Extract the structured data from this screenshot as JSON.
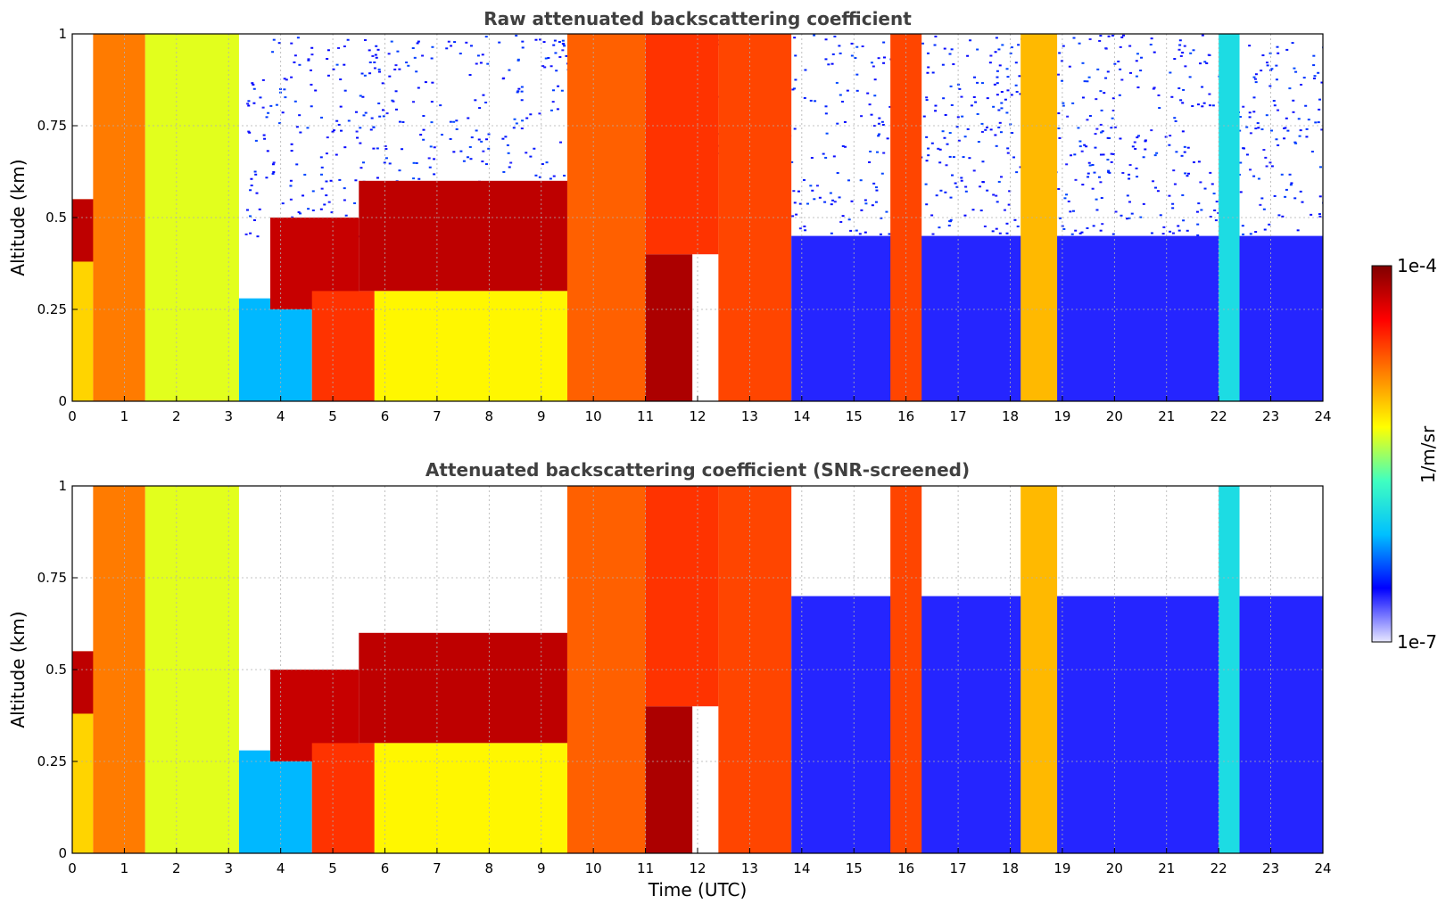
{
  "chart_data": [
    {
      "type": "heatmap",
      "title": "Raw attenuated backscattering coefficient",
      "xlabel": "",
      "ylabel": "Altitude (km)",
      "xlim": [
        0,
        24
      ],
      "ylim": [
        0,
        1
      ],
      "x_ticks": [
        "0",
        "1",
        "2",
        "3",
        "4",
        "5",
        "6",
        "7",
        "8",
        "9",
        "10",
        "11",
        "12",
        "13",
        "14",
        "15",
        "16",
        "17",
        "18",
        "19",
        "20",
        "21",
        "22",
        "23",
        "24"
      ],
      "y_ticks": [
        "0",
        "0.25",
        "0.5",
        "0.75",
        "1"
      ],
      "grid": true,
      "snr_screened": false,
      "regions": [
        {
          "t0": 0.0,
          "t1": 0.4,
          "h0": 0.0,
          "h1": 0.55,
          "level": 0.62
        },
        {
          "t0": 0.0,
          "t1": 0.6,
          "h0": 0.38,
          "h1": 0.55,
          "level": 0.93
        },
        {
          "t0": 0.4,
          "t1": 1.4,
          "h0": 0.0,
          "h1": 1.0,
          "level": 0.72
        },
        {
          "t0": 1.4,
          "t1": 3.2,
          "h0": 0.0,
          "h1": 1.0,
          "level": 0.55
        },
        {
          "t0": 3.2,
          "t1": 4.6,
          "h0": 0.0,
          "h1": 0.28,
          "level": 0.28
        },
        {
          "t0": 3.8,
          "t1": 5.5,
          "h0": 0.25,
          "h1": 0.5,
          "level": 0.92
        },
        {
          "t0": 4.6,
          "t1": 5.8,
          "h0": 0.0,
          "h1": 0.3,
          "level": 0.8
        },
        {
          "t0": 5.5,
          "t1": 9.5,
          "h0": 0.3,
          "h1": 0.6,
          "level": 0.93
        },
        {
          "t0": 5.8,
          "t1": 9.5,
          "h0": 0.0,
          "h1": 0.3,
          "level": 0.58
        },
        {
          "t0": 9.5,
          "t1": 11.0,
          "h0": 0.0,
          "h1": 1.0,
          "level": 0.75
        },
        {
          "t0": 11.0,
          "t1": 11.9,
          "h0": 0.0,
          "h1": 0.4,
          "level": 0.95
        },
        {
          "t0": 11.0,
          "t1": 12.4,
          "h0": 0.4,
          "h1": 1.0,
          "level": 0.8
        },
        {
          "t0": 12.4,
          "t1": 13.8,
          "h0": 0.0,
          "h1": 1.0,
          "level": 0.78
        },
        {
          "t0": 13.8,
          "t1": 24.0,
          "h0": 0.0,
          "h1": 0.45,
          "level": 0.12
        },
        {
          "t0": 15.7,
          "t1": 16.3,
          "h0": 0.0,
          "h1": 1.0,
          "level": 0.78
        },
        {
          "t0": 18.2,
          "t1": 18.9,
          "h0": 0.0,
          "h1": 1.0,
          "level": 0.65
        },
        {
          "t0": 22.0,
          "t1": 22.4,
          "h0": 0.0,
          "h1": 1.0,
          "level": 0.35
        }
      ]
    },
    {
      "type": "heatmap",
      "title": "Attenuated backscattering coefficient (SNR-screened)",
      "xlabel": "Time (UTC)",
      "ylabel": "Altitude (km)",
      "xlim": [
        0,
        24
      ],
      "ylim": [
        0,
        1
      ],
      "x_ticks": [
        "0",
        "1",
        "2",
        "3",
        "4",
        "5",
        "6",
        "7",
        "8",
        "9",
        "10",
        "11",
        "12",
        "13",
        "14",
        "15",
        "16",
        "17",
        "18",
        "19",
        "20",
        "21",
        "22",
        "23",
        "24"
      ],
      "y_ticks": [
        "0",
        "0.25",
        "0.5",
        "0.75",
        "1"
      ],
      "grid": true,
      "snr_screened": true,
      "regions": [
        {
          "t0": 0.0,
          "t1": 0.4,
          "h0": 0.0,
          "h1": 0.55,
          "level": 0.62
        },
        {
          "t0": 0.0,
          "t1": 0.6,
          "h0": 0.38,
          "h1": 0.55,
          "level": 0.93
        },
        {
          "t0": 0.4,
          "t1": 1.4,
          "h0": 0.0,
          "h1": 1.0,
          "level": 0.72
        },
        {
          "t0": 1.4,
          "t1": 3.2,
          "h0": 0.0,
          "h1": 1.0,
          "level": 0.55
        },
        {
          "t0": 3.2,
          "t1": 4.6,
          "h0": 0.0,
          "h1": 0.28,
          "level": 0.28
        },
        {
          "t0": 3.8,
          "t1": 5.5,
          "h0": 0.25,
          "h1": 0.5,
          "level": 0.92
        },
        {
          "t0": 4.6,
          "t1": 5.8,
          "h0": 0.0,
          "h1": 0.3,
          "level": 0.8
        },
        {
          "t0": 5.5,
          "t1": 9.5,
          "h0": 0.3,
          "h1": 0.6,
          "level": 0.93
        },
        {
          "t0": 5.8,
          "t1": 9.5,
          "h0": 0.0,
          "h1": 0.3,
          "level": 0.58
        },
        {
          "t0": 9.5,
          "t1": 11.0,
          "h0": 0.0,
          "h1": 1.0,
          "level": 0.75
        },
        {
          "t0": 11.0,
          "t1": 11.9,
          "h0": 0.0,
          "h1": 0.4,
          "level": 0.95
        },
        {
          "t0": 11.0,
          "t1": 12.4,
          "h0": 0.4,
          "h1": 1.0,
          "level": 0.8
        },
        {
          "t0": 12.4,
          "t1": 13.8,
          "h0": 0.0,
          "h1": 1.0,
          "level": 0.78
        },
        {
          "t0": 13.8,
          "t1": 24.0,
          "h0": 0.0,
          "h1": 0.7,
          "level": 0.12
        },
        {
          "t0": 15.7,
          "t1": 16.3,
          "h0": 0.0,
          "h1": 1.0,
          "level": 0.78
        },
        {
          "t0": 18.2,
          "t1": 18.9,
          "h0": 0.0,
          "h1": 1.0,
          "level": 0.65
        },
        {
          "t0": 22.0,
          "t1": 22.4,
          "h0": 0.0,
          "h1": 1.0,
          "level": 0.35
        }
      ]
    }
  ],
  "colorbar": {
    "label": "1/m/sr",
    "min_label": "1e-7",
    "max_label": "1e-4",
    "colormap": "jet",
    "colors": [
      "#e8e8ff",
      "#0000ff",
      "#00c0ff",
      "#40ffc0",
      "#ffff00",
      "#ff8000",
      "#ff0000",
      "#800000"
    ]
  }
}
